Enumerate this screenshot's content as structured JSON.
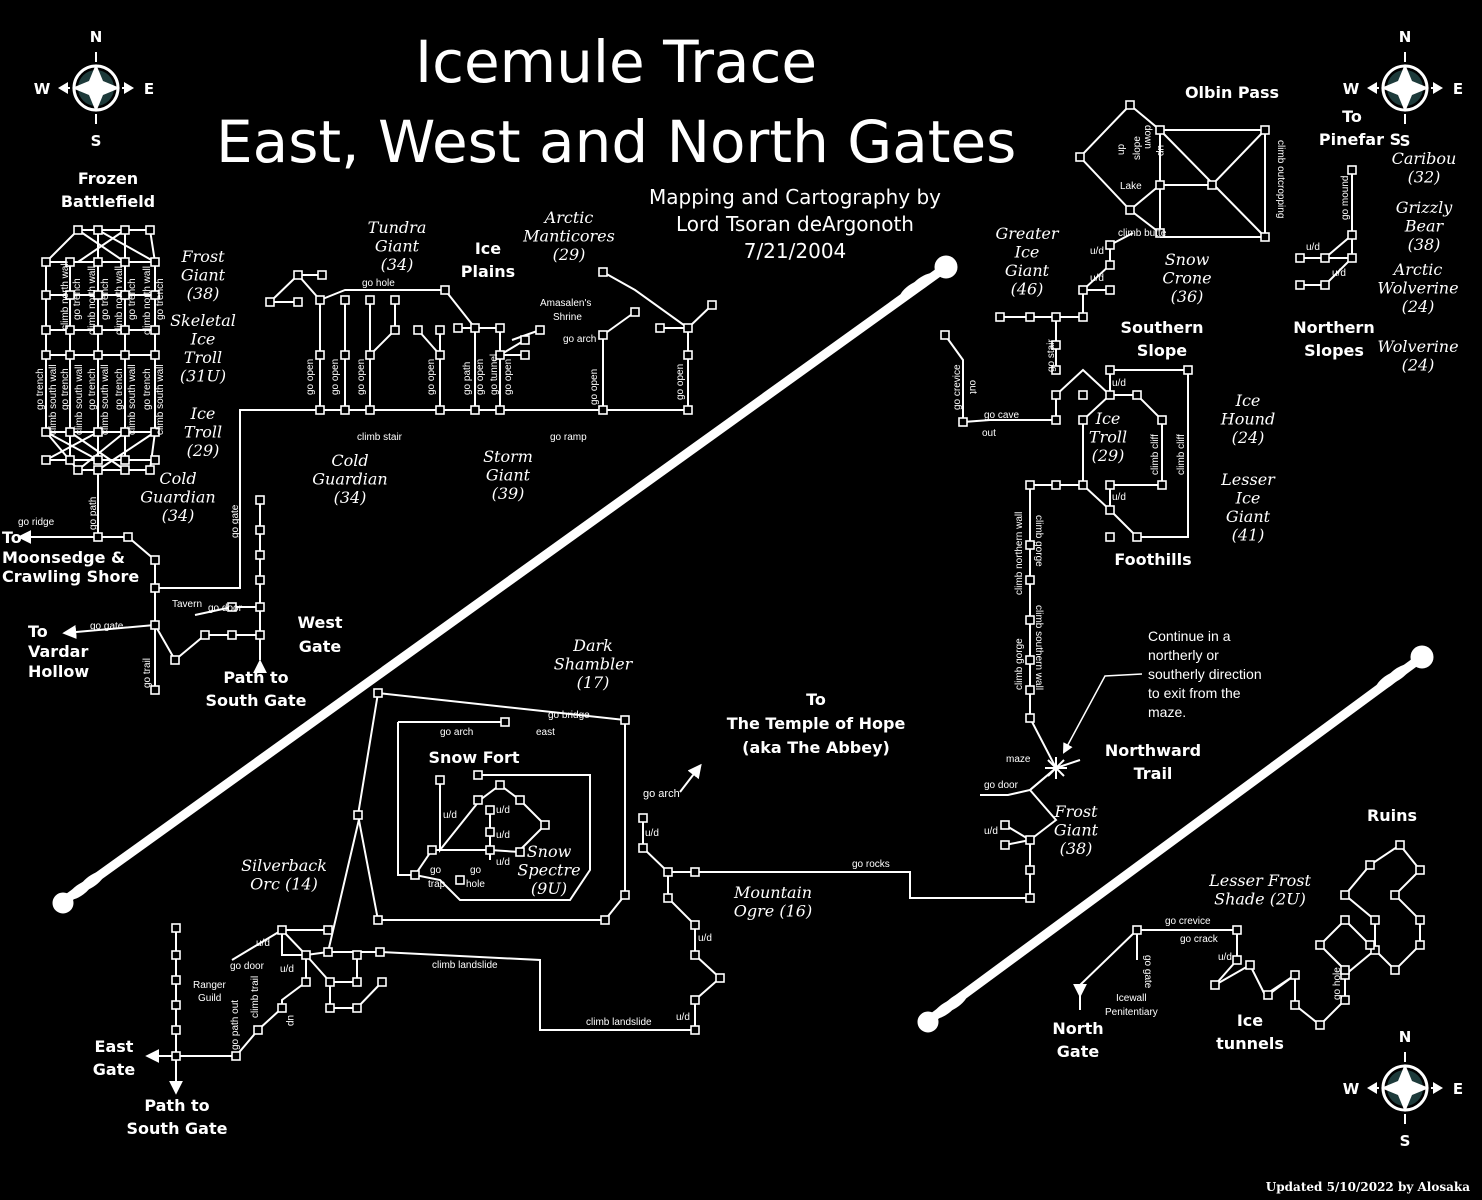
{
  "header": {
    "title_line1": "Icemule Trace",
    "title_line2": "East, West and North Gates",
    "credit_line1": "Mapping and Cartography by",
    "credit_line2": "Lord Tsoran deArgonoth",
    "credit_line3": "7/21/2004"
  },
  "footer": {
    "updated": "Updated 5/10/2022 by Alosaka"
  },
  "compass": {
    "n": "N",
    "s": "S",
    "e": "E",
    "w": "W"
  },
  "areas": {
    "frozen_battlefield_1": "Frozen",
    "frozen_battlefield_2": "Battlefield",
    "ice_plains_1": "Ice",
    "ice_plains_2": "Plains",
    "to_moonsedge_1": "To",
    "to_moonsedge_2": "Moonsedge &",
    "to_moonsedge_3": "Crawling Shore",
    "to_vardar_1": "To",
    "to_vardar_2": "Vardar",
    "to_vardar_3": "Hollow",
    "west_gate_1": "West",
    "west_gate_2": "Gate",
    "path_south_w1": "Path to",
    "path_south_w2": "South Gate",
    "snow_fort": "Snow Fort",
    "temple_1": "To",
    "temple_2": "The Temple of Hope",
    "temple_3": "(aka The Abbey)",
    "east_gate_1": "East",
    "east_gate_2": "Gate",
    "path_south_e1": "Path to",
    "path_south_e2": "South Gate",
    "olbin_pass": "Olbin Pass",
    "to_pinefar_1": "To",
    "to_pinefar_2": "Pinefar S",
    "southern_slope_1": "Southern",
    "southern_slope_2": "Slope",
    "northern_slopes_1": "Northern",
    "northern_slopes_2": "Slopes",
    "foothills": "Foothills",
    "northward_trail_1": "Northward",
    "northward_trail_2": "Trail",
    "ruins": "Ruins",
    "north_gate_1": "North",
    "north_gate_2": "Gate",
    "ice_tunnels_1": "Ice",
    "ice_tunnels_2": "tunnels"
  },
  "creatures": {
    "frost_giant_w": [
      "Frost",
      "Giant",
      "(38)"
    ],
    "skeletal_ice_troll": [
      "Skeletal",
      "Ice",
      "Troll",
      "(31U)"
    ],
    "ice_troll_w": [
      "Ice",
      "Troll",
      "(29)"
    ],
    "cold_guardian_1": [
      "Cold",
      "Guardian",
      "(34)"
    ],
    "cold_guardian_2": [
      "Cold",
      "Guardian",
      "(34)"
    ],
    "tundra_giant": [
      "Tundra",
      "Giant",
      "(34)"
    ],
    "arctic_manticores": [
      "Arctic",
      "Manticores",
      "(29)"
    ],
    "storm_giant": [
      "Storm",
      "Giant",
      "(39)"
    ],
    "dark_shambler": [
      "Dark",
      "Shambler",
      "(17)"
    ],
    "snow_spectre": [
      "Snow",
      "Spectre",
      "(9U)"
    ],
    "silverback_orc": [
      "Silverback",
      "Orc (14)"
    ],
    "mountain_ogre": [
      "Mountain",
      "Ogre (16)"
    ],
    "greater_ice_giant": [
      "Greater",
      "Ice",
      "Giant",
      "(46)"
    ],
    "snow_crone": [
      "Snow",
      "Crone",
      "(36)"
    ],
    "caribou": [
      "Caribou",
      "(32)"
    ],
    "grizzly_bear": [
      "Grizzly",
      "Bear",
      "(38)"
    ],
    "arctic_wolverine": [
      "Arctic",
      "Wolverine",
      "(24)"
    ],
    "wolverine": [
      "Wolverine",
      "(24)"
    ],
    "ice_hound": [
      "Ice",
      "Hound",
      "(24)"
    ],
    "ice_troll_e": [
      "Ice",
      "Troll",
      "(29)"
    ],
    "lesser_ice_giant": [
      "Lesser",
      "Ice",
      "Giant",
      "(41)"
    ],
    "frost_giant_e": [
      "Frost",
      "Giant",
      "(38)"
    ],
    "lesser_frost_shade": [
      "Lesser Frost",
      "Shade (2U)"
    ]
  },
  "labels": {
    "go_hole": "go hole",
    "go_open": "go open",
    "go_path": "go path",
    "go_tunnel": "go tunnel",
    "climb_stair": "climb stair",
    "go_ramp": "go ramp",
    "go_arch": "go arch",
    "shrine_1": "Amasalen's",
    "shrine_2": "Shrine",
    "go_trench": "go trench",
    "climb_north_wall": "climb north wall",
    "climb_south_wall": "climb south wall",
    "go_ridge": "go ridge",
    "go_gate": "go gate",
    "tavern": "Tavern",
    "go_door": "go door",
    "go_trail": "go trail",
    "go_bridge": "go bridge",
    "east": "east",
    "u_d": "u/d",
    "go": "go",
    "trap": "trap",
    "hole": "hole",
    "climb_landslide": "climb landslide",
    "ranger_guild_1": "Ranger",
    "ranger_guild_2": "Guild",
    "climb_trail": "climb trail",
    "go_path_out": "go path out",
    "up": "up",
    "down": "down",
    "go_rocks": "go rocks",
    "maze": "maze",
    "maze_note": [
      "Continue in a",
      "northerly or",
      "southerly direction",
      "to exit from the",
      "maze."
    ],
    "go_crevice": "go crevice",
    "go_cave": "go cave",
    "out": "out",
    "climb_cliff": "climb cliff",
    "climb_gorge": "climb gorge",
    "climb_northern_wall": "climb northern wall",
    "climb_southern_wall": "climb southern wall",
    "go_stair": "go stair",
    "climb_butte": "climb butte",
    "lake": "Lake",
    "slope": "slope",
    "climb_outcropping": "climb outcropping",
    "go_mound": "go mound",
    "go_crack": "go crack",
    "icewall_1": "Icewall",
    "icewall_2": "Penitentiary"
  }
}
